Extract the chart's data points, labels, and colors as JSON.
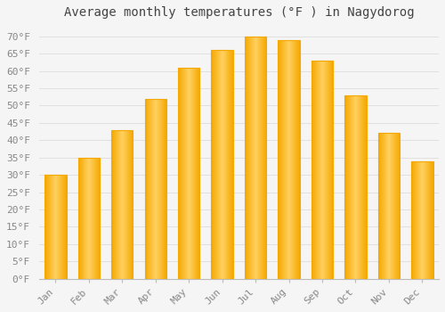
{
  "title": "Average monthly temperatures (°F ) in Nagydorog",
  "months": [
    "Jan",
    "Feb",
    "Mar",
    "Apr",
    "May",
    "Jun",
    "Jul",
    "Aug",
    "Sep",
    "Oct",
    "Nov",
    "Dec"
  ],
  "values": [
    30,
    35,
    43,
    52,
    61,
    66,
    70,
    69,
    63,
    53,
    42,
    34
  ],
  "bar_color_center": "#FFD060",
  "bar_color_edge": "#F5A800",
  "background_color": "#F5F5F5",
  "plot_bg_color": "#F5F5F5",
  "grid_color": "#DDDDDD",
  "ylim": [
    0,
    73
  ],
  "yticks": [
    0,
    5,
    10,
    15,
    20,
    25,
    30,
    35,
    40,
    45,
    50,
    55,
    60,
    65,
    70
  ],
  "ytick_labels": [
    "0°F",
    "5°F",
    "10°F",
    "15°F",
    "20°F",
    "25°F",
    "30°F",
    "35°F",
    "40°F",
    "45°F",
    "50°F",
    "55°F",
    "60°F",
    "65°F",
    "70°F"
  ],
  "title_fontsize": 10,
  "tick_fontsize": 8,
  "tick_color": "#888888",
  "title_color": "#444444",
  "font_family": "monospace",
  "bar_width": 0.65
}
